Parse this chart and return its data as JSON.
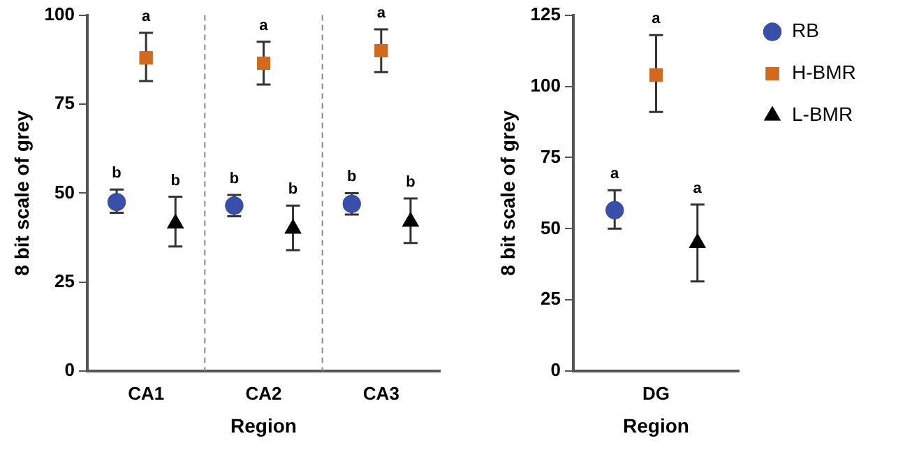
{
  "chart_data": [
    {
      "type": "scatter",
      "xlabel": "Region",
      "ylabel": "8 bit scale of grey",
      "categories": [
        "CA1",
        "CA2",
        "CA3"
      ],
      "ylim": [
        0,
        100
      ],
      "yticks": [
        0,
        25,
        50,
        75,
        100
      ],
      "grid": false,
      "legend": false,
      "series": [
        {
          "color": "#3a4fa8",
          "marker": "circle",
          "values": [
            47.5,
            46.5,
            47
          ],
          "errors": [
            [
              44.5,
              51
            ],
            [
              43.5,
              49.5
            ],
            [
              44,
              50
            ]
          ],
          "value_labels": [
            "b",
            "b",
            "b"
          ]
        },
        {
          "color": "#d2691e",
          "marker": "square",
          "values": [
            88,
            86.5,
            90
          ],
          "errors": [
            [
              81.5,
              95
            ],
            [
              80.5,
              92.5
            ],
            [
              84,
              96
            ]
          ],
          "value_labels": [
            "a",
            "a",
            "a"
          ]
        },
        {
          "color": "#000000",
          "marker": "triangle",
          "values": [
            41.5,
            40,
            42
          ],
          "errors": [
            [
              35,
              49
            ],
            [
              34,
              46.5
            ],
            [
              36,
              48.5
            ]
          ],
          "value_labels": [
            "b",
            "b",
            "b"
          ]
        }
      ]
    },
    {
      "type": "scatter",
      "xlabel": "Region",
      "ylabel": "8 bit scale of grey",
      "categories": [
        "DG"
      ],
      "ylim": [
        0,
        125
      ],
      "yticks": [
        0,
        25,
        50,
        75,
        100,
        125
      ],
      "grid": false,
      "legend": "right",
      "series": [
        {
          "name": "RB",
          "color": "#3a4fa8",
          "marker": "circle",
          "values": [
            56.5
          ],
          "errors": [
            [
              50,
              63.5
            ]
          ],
          "value_labels": [
            "a"
          ]
        },
        {
          "name": "H-BMR",
          "color": "#d2691e",
          "marker": "square",
          "values": [
            104
          ],
          "errors": [
            [
              91,
              118
            ]
          ],
          "value_labels": [
            "a"
          ]
        },
        {
          "name": "L-BMR",
          "color": "#000000",
          "marker": "triangle",
          "values": [
            45
          ],
          "errors": [
            [
              31.5,
              58.5
            ]
          ],
          "value_labels": [
            "a"
          ]
        }
      ]
    }
  ]
}
